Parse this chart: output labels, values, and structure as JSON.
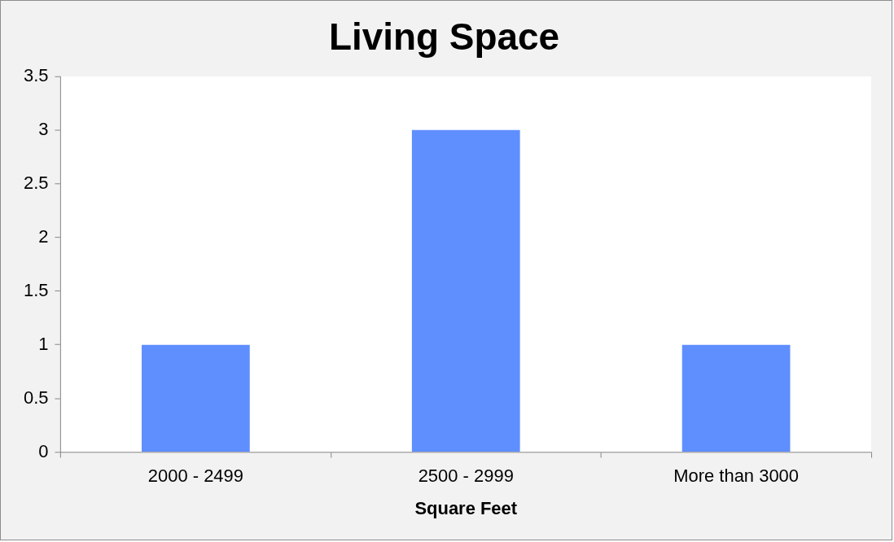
{
  "chart_data": {
    "type": "bar",
    "title": "Living Space",
    "xlabel": "Square Feet",
    "categories": [
      "2000 - 2499",
      "2500 - 2999",
      "More than 3000"
    ],
    "values": [
      1,
      3,
      1
    ],
    "color": "#5f8eff",
    "ylim": [
      0,
      3.5
    ],
    "yticks": [
      0,
      0.5,
      1,
      1.5,
      2,
      2.5,
      3,
      3.5
    ],
    "grid": false,
    "legend": false
  }
}
